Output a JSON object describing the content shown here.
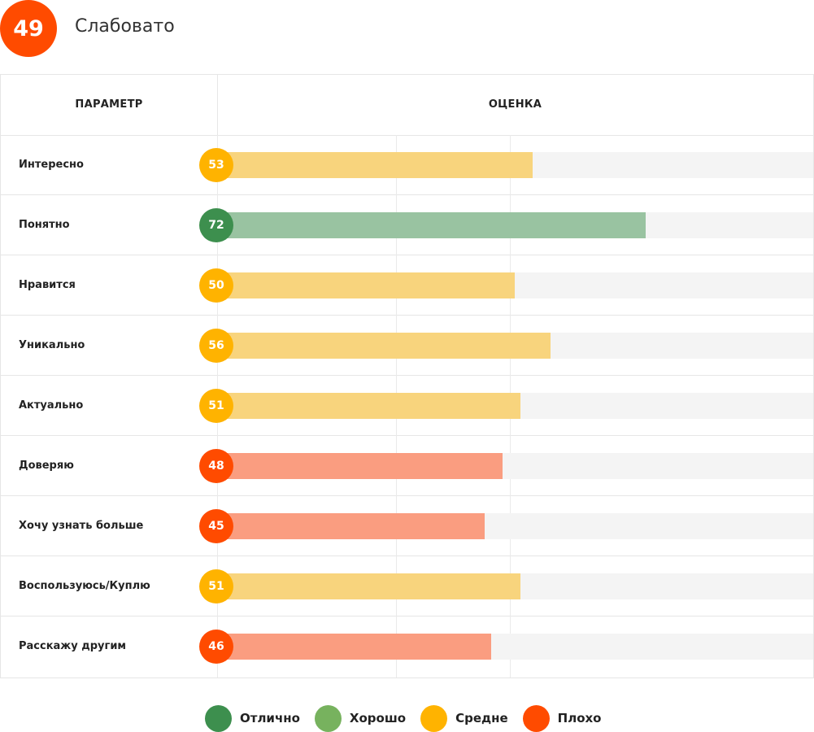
{
  "summary": {
    "score": "49",
    "verdict": "Слабовато",
    "color": "#ff4b00"
  },
  "table": {
    "headers": {
      "param": "ПАРАМЕТР",
      "score": "ОЦЕНКА"
    },
    "gridlines_percent": [
      0,
      30,
      49
    ]
  },
  "statuses": {
    "excellent": {
      "label": "Отлично",
      "badge": "#3d8f4e",
      "bar": "#99c3a1"
    },
    "good": {
      "label": "Хорошо",
      "badge": "#77b25e",
      "bar": "#bcd8ae"
    },
    "average": {
      "label": "Средне",
      "badge": "#ffb300",
      "bar": "#f8d47d"
    },
    "poor": {
      "label": "Плохо",
      "badge": "#ff4b00",
      "bar": "#fa9d80"
    }
  },
  "rows": [
    {
      "label": "Интересно",
      "value": 53,
      "status": "average"
    },
    {
      "label": "Понятно",
      "value": 72,
      "status": "excellent"
    },
    {
      "label": "Нравится",
      "value": 50,
      "status": "average"
    },
    {
      "label": "Уникально",
      "value": 56,
      "status": "average"
    },
    {
      "label": "Актуально",
      "value": 51,
      "status": "average"
    },
    {
      "label": "Доверяю",
      "value": 48,
      "status": "poor"
    },
    {
      "label": "Хочу узнать больше",
      "value": 45,
      "status": "poor"
    },
    {
      "label": "Воспользуюсь/Куплю",
      "value": 51,
      "status": "average"
    },
    {
      "label": "Расскажу другим",
      "value": 46,
      "status": "poor"
    }
  ],
  "legend": [
    {
      "key": "excellent",
      "label": "Отлично"
    },
    {
      "key": "good",
      "label": "Хорошо"
    },
    {
      "key": "average",
      "label": "Средне"
    },
    {
      "key": "poor",
      "label": "Плохо"
    }
  ]
}
